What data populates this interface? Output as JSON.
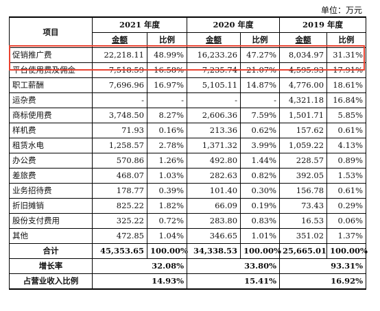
{
  "unit": "单位：万元",
  "header": {
    "item": "项目",
    "years": [
      "2021 年度",
      "2020 年度",
      "2019 年度"
    ],
    "amount": "金额",
    "ratio": "比例"
  },
  "rows": [
    {
      "label": "促销推广费",
      "v": [
        "22,218.11",
        "48.99%",
        "16,233.26",
        "47.27%",
        "8,034.97",
        "31.31%"
      ]
    },
    {
      "label": "平台使用费及佣金",
      "v": [
        "7,518.59",
        "16.58%",
        "7,235.74",
        "21.07%",
        "4,595.93",
        "17.91%"
      ]
    },
    {
      "label": "职工薪酬",
      "v": [
        "7,696.96",
        "16.97%",
        "5,105.11",
        "14.87%",
        "4,776.00",
        "18.61%"
      ]
    },
    {
      "label": "运杂费",
      "v": [
        "-",
        "-",
        "-",
        "-",
        "4,321.18",
        "16.84%"
      ]
    },
    {
      "label": "商标使用费",
      "v": [
        "3,748.50",
        "8.27%",
        "2,606.36",
        "7.59%",
        "1,501.71",
        "5.85%"
      ]
    },
    {
      "label": "样机费",
      "v": [
        "71.93",
        "0.16%",
        "213.36",
        "0.62%",
        "157.62",
        "0.61%"
      ]
    },
    {
      "label": "租赁水电",
      "v": [
        "1,258.57",
        "2.78%",
        "1,371.32",
        "3.99%",
        "1,059.22",
        "4.13%"
      ]
    },
    {
      "label": "办公费",
      "v": [
        "570.86",
        "1.26%",
        "492.80",
        "1.44%",
        "228.57",
        "0.89%"
      ]
    },
    {
      "label": "差旅费",
      "v": [
        "468.07",
        "1.03%",
        "282.63",
        "0.82%",
        "392.05",
        "1.53%"
      ]
    },
    {
      "label": "业务招待费",
      "v": [
        "178.77",
        "0.39%",
        "101.40",
        "0.30%",
        "156.78",
        "0.61%"
      ]
    },
    {
      "label": "折旧摊销",
      "v": [
        "825.22",
        "1.82%",
        "66.09",
        "0.19%",
        "73.43",
        "0.29%"
      ]
    },
    {
      "label": "股份支付费用",
      "v": [
        "325.22",
        "0.72%",
        "283.80",
        "0.83%",
        "16.53",
        "0.06%"
      ]
    },
    {
      "label": "其他",
      "v": [
        "472.85",
        "1.04%",
        "346.65",
        "1.01%",
        "351.02",
        "1.37%"
      ]
    }
  ],
  "total": {
    "label": "合计",
    "v": [
      "45,353.65",
      "100.00%",
      "34,338.53",
      "100.00%",
      "25,665.01",
      "100.00%"
    ]
  },
  "growth": {
    "label": "增长率",
    "v": [
      "32.08%",
      "33.80%",
      "93.31%"
    ]
  },
  "revenue_ratio": {
    "label": "占营业收入比例",
    "v": [
      "14.93%",
      "15.41%",
      "16.92%"
    ]
  },
  "highlight_color": "#e8412f"
}
